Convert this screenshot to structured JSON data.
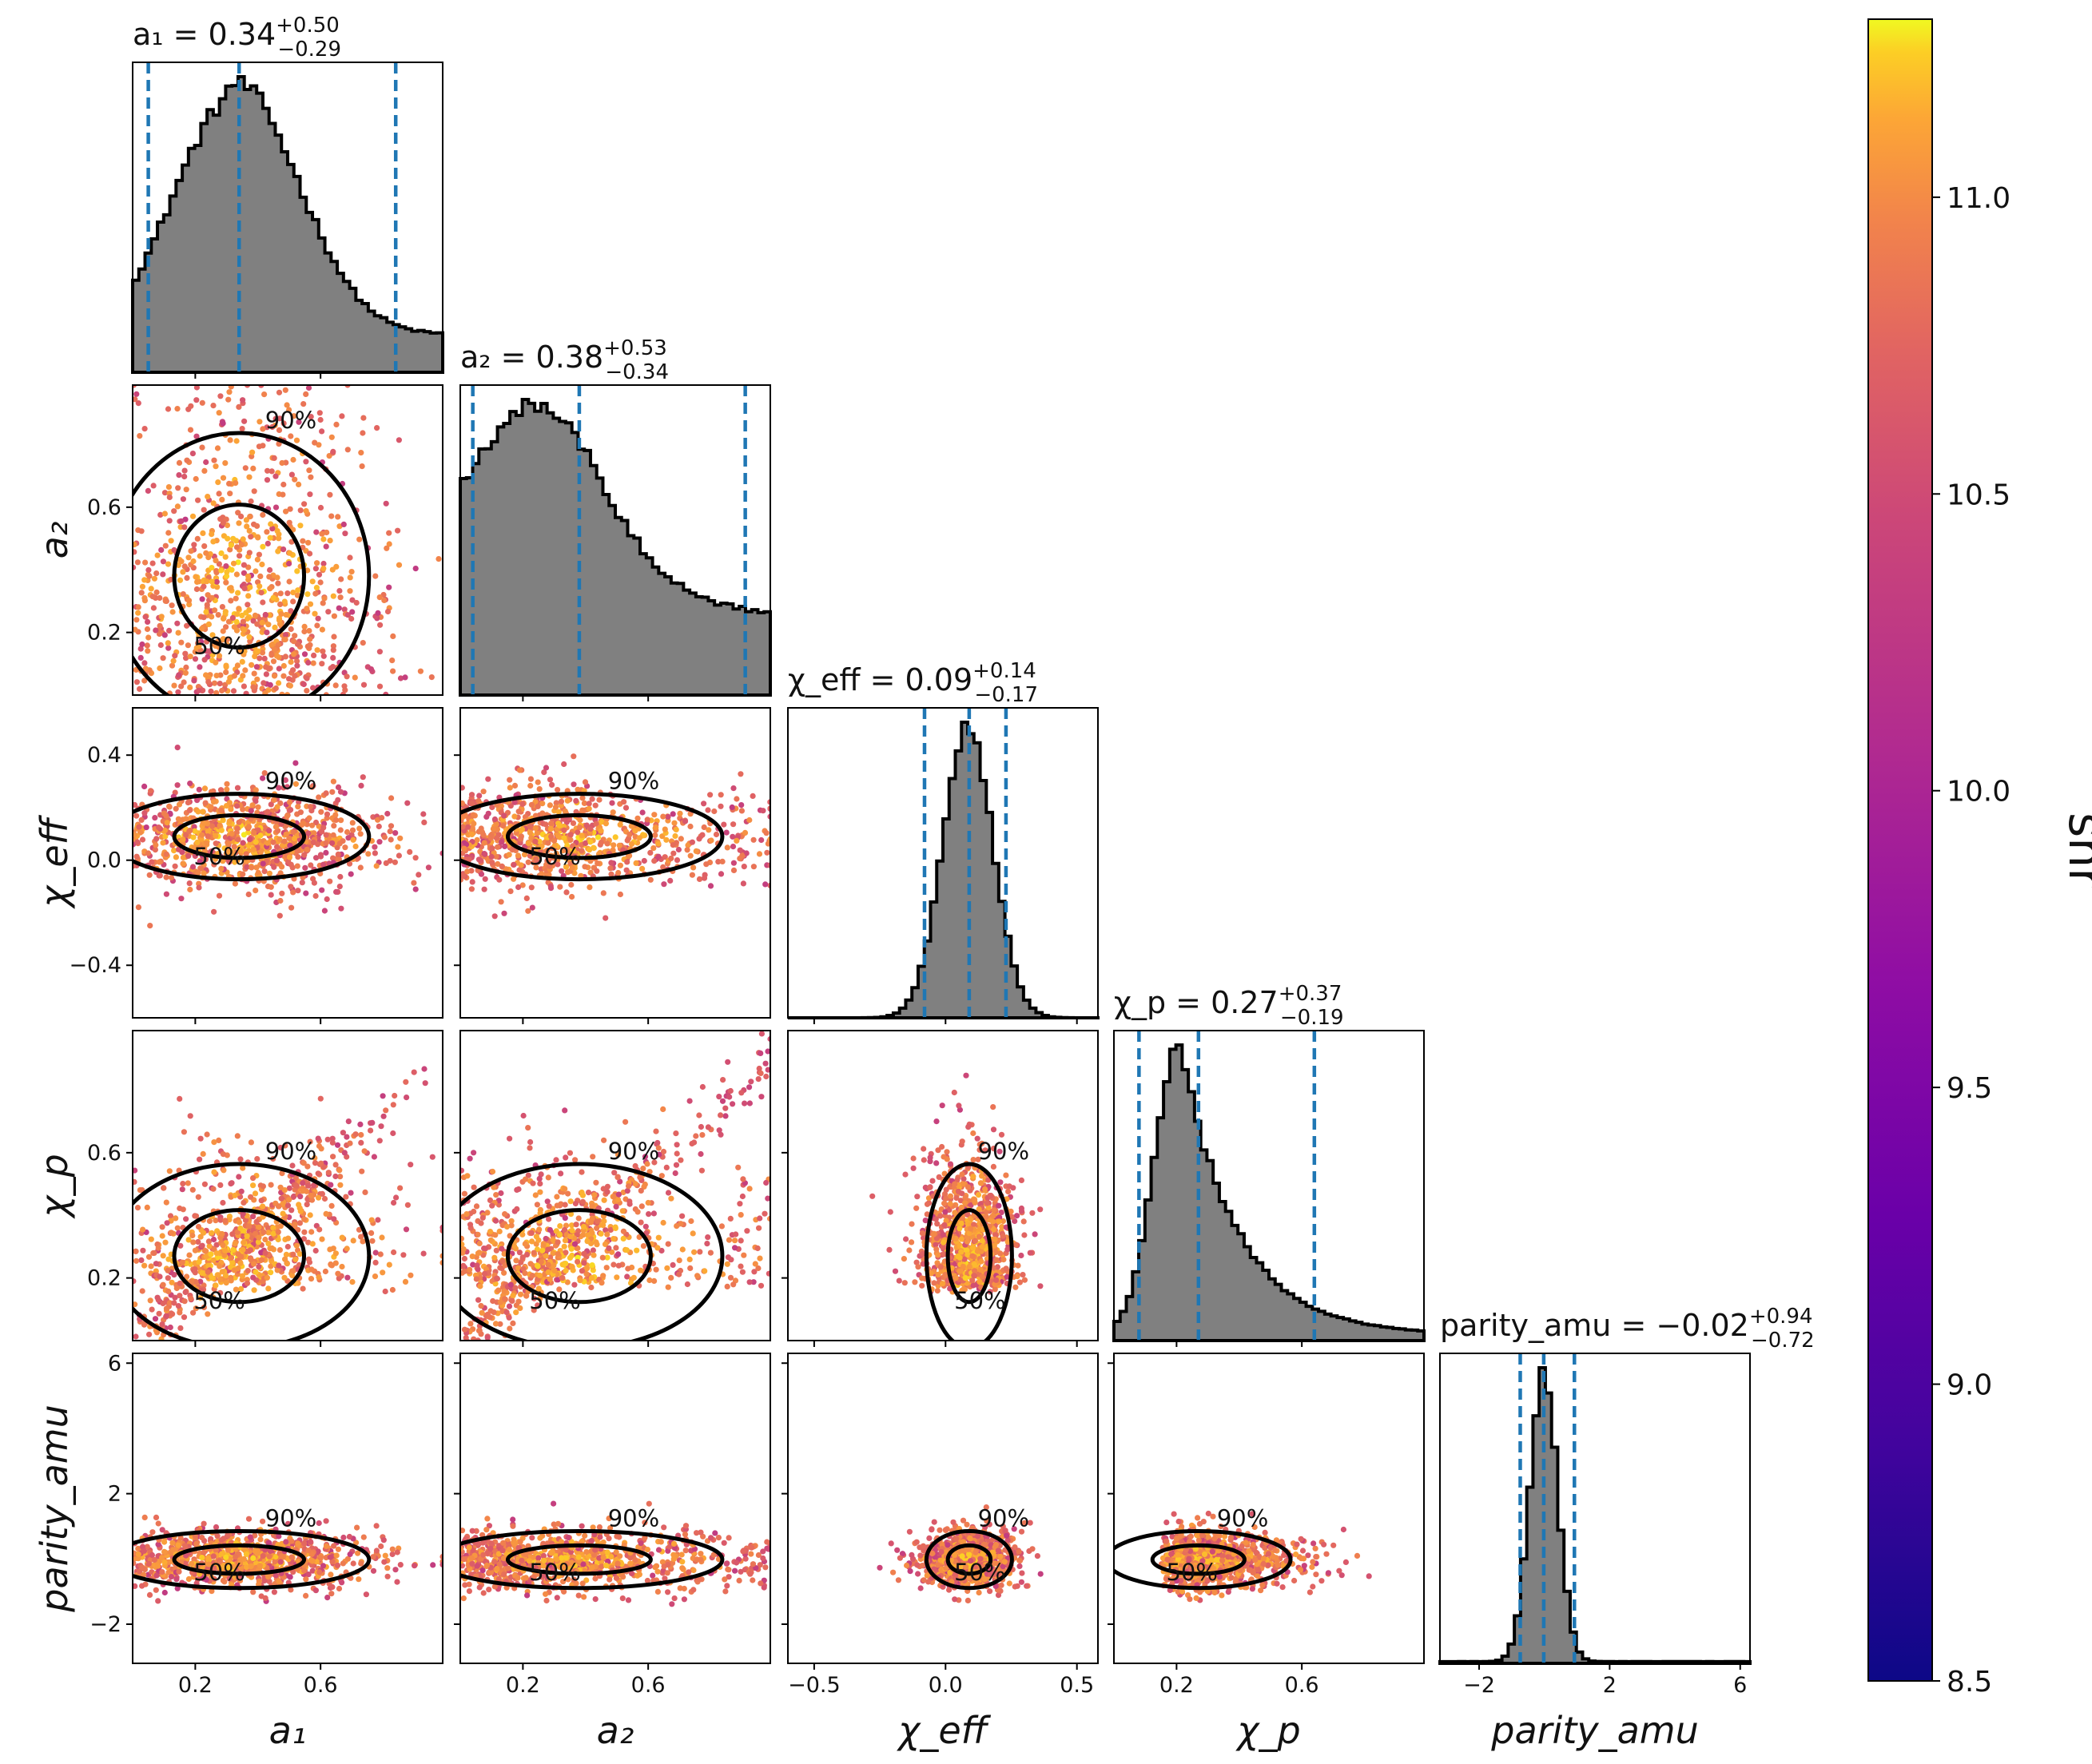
{
  "chart_data": {
    "type": "scatter",
    "subtype": "corner-plot",
    "parameters": [
      {
        "key": "a_1",
        "label": "a₁",
        "median": 0.34,
        "plus": 0.5,
        "minus": 0.29,
        "lim": [
          0.0,
          0.99
        ],
        "ticks": [
          0.2,
          0.6
        ],
        "tick_labels": [
          "0.2",
          "0.6"
        ],
        "title": "a₁ = 0.34",
        "title_sup": "+0.50",
        "title_sub": "−0.29",
        "quantiles": [
          0.05,
          0.34,
          0.84
        ]
      },
      {
        "key": "a_2",
        "label": "a₂",
        "median": 0.38,
        "plus": 0.53,
        "minus": 0.34,
        "lim": [
          0.0,
          0.99
        ],
        "ticks": [
          0.2,
          0.6
        ],
        "tick_labels": [
          "0.2",
          "0.6"
        ],
        "title": "a₂ = 0.38",
        "title_sup": "+0.53",
        "title_sub": "−0.34",
        "quantiles": [
          0.04,
          0.38,
          0.91
        ]
      },
      {
        "key": "chi_eff",
        "label": "χ_eff",
        "median": 0.09,
        "plus": 0.14,
        "minus": 0.17,
        "lim": [
          -0.6,
          0.58
        ],
        "ticks": [
          -0.5,
          0.0,
          0.5
        ],
        "tick_labels": [
          "−0.5",
          "0.0",
          "0.5"
        ],
        "ticks_y": [
          -0.4,
          0.0,
          0.4
        ],
        "tick_labels_y": [
          "−0.4",
          "0.0",
          "0.4"
        ],
        "title": "χ_eff = 0.09",
        "title_sup": "+0.14",
        "title_sub": "−0.17",
        "quantiles": [
          -0.08,
          0.09,
          0.23
        ]
      },
      {
        "key": "chi_p",
        "label": "χ_p",
        "median": 0.27,
        "plus": 0.37,
        "minus": 0.19,
        "lim": [
          0.0,
          0.99
        ],
        "ticks": [
          0.2,
          0.6
        ],
        "tick_labels": [
          "0.2",
          "0.6"
        ],
        "title": "χ_p = 0.27",
        "title_sup": "+0.37",
        "title_sub": "−0.19",
        "quantiles": [
          0.08,
          0.27,
          0.64
        ]
      },
      {
        "key": "parity_amu",
        "label": "parity_amu",
        "median": -0.02,
        "plus": 0.94,
        "minus": 0.72,
        "lim": [
          -3.2,
          6.3
        ],
        "ticks": [
          -2,
          2,
          6
        ],
        "tick_labels": [
          "−2",
          "2",
          "6"
        ],
        "ticks_x": [
          -2,
          2,
          6
        ],
        "tick_labels_x": [
          "−2",
          "2",
          "6"
        ],
        "title": "parity_amu = −0.02",
        "title_sup": "+0.94",
        "title_sub": "−0.72",
        "quantiles": [
          -0.74,
          -0.02,
          0.92
        ]
      }
    ],
    "contour_levels": [
      "50%",
      "90%"
    ],
    "colorbar": {
      "label": "snr",
      "range": [
        8.5,
        11.3
      ],
      "ticks": [
        8.5,
        9.0,
        9.5,
        10.0,
        10.5,
        11.0
      ],
      "tick_labels": [
        "8.5",
        "9.0",
        "9.5",
        "10.0",
        "10.5",
        "11.0"
      ],
      "colormap": "plasma"
    },
    "colors": {
      "hist_fill": "#808080",
      "hist_edge": "#000000",
      "quantile_line": "#1f77b4",
      "contour": "#000000"
    }
  }
}
